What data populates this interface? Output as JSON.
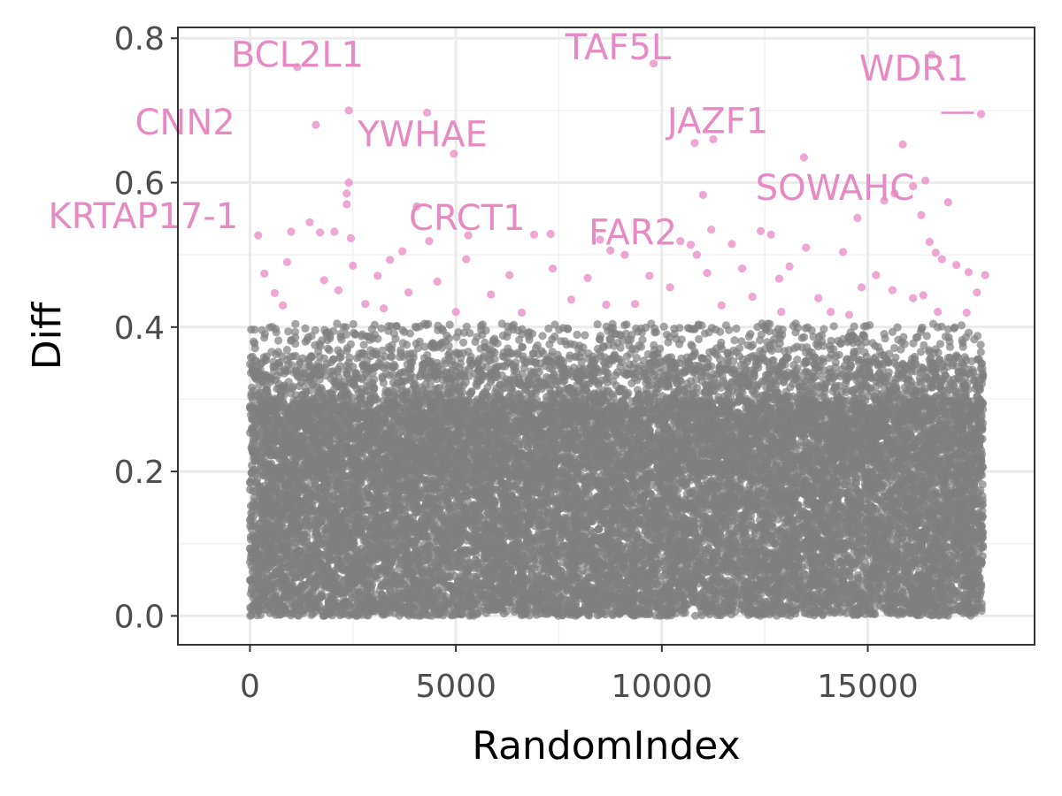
{
  "chart_data": {
    "type": "scatter",
    "title": "",
    "xlabel": "RandomIndex",
    "ylabel": "Diff",
    "xlim": [
      -1750,
      19050
    ],
    "ylim": [
      -0.04,
      0.815
    ],
    "x_ticks": [
      0,
      5000,
      10000,
      15000
    ],
    "x_tick_labels": [
      "0",
      "5000",
      "10000",
      "15000"
    ],
    "y_ticks": [
      0.0,
      0.2,
      0.4,
      0.6,
      0.8
    ],
    "y_tick_labels": [
      "0.0",
      "0.2",
      "0.4",
      "0.6",
      "0.8"
    ],
    "grid": true,
    "n_points_approx": 17800,
    "threshold": 0.41,
    "colors": {
      "background_points": "#7f7f7f",
      "highlight_points": "#e78ac3",
      "panel_border": "#333333",
      "grid_major": "#ebebeb",
      "grid_minor": "#f2f2f2"
    },
    "series": [
      {
        "color": "#7f7f7f",
        "distribution": "uniform x over [0, 17800]; y concentrated 0.0-0.4 (dense below ~0.3, sparser toward 0.4)"
      },
      {
        "color": "#e78ac3",
        "points": [
          [
            1150,
            0.76
          ],
          [
            2400,
            0.7
          ],
          [
            1600,
            0.68
          ],
          [
            4300,
            0.697
          ],
          [
            4950,
            0.64
          ],
          [
            9800,
            0.765
          ],
          [
            10800,
            0.655
          ],
          [
            11250,
            0.66
          ],
          [
            11000,
            0.583
          ],
          [
            13450,
            0.635
          ],
          [
            15850,
            0.653
          ],
          [
            16550,
            0.777
          ],
          [
            17750,
            0.695
          ],
          [
            16400,
            0.603
          ],
          [
            16100,
            0.595
          ],
          [
            15400,
            0.575
          ],
          [
            15650,
            0.585
          ],
          [
            16950,
            0.573
          ],
          [
            2400,
            0.6
          ],
          [
            2350,
            0.585
          ],
          [
            2350,
            0.57
          ],
          [
            4050,
            0.567
          ],
          [
            14750,
            0.551
          ],
          [
            16300,
            0.555
          ],
          [
            1450,
            0.545
          ],
          [
            2450,
            0.523
          ],
          [
            2050,
            0.532
          ],
          [
            1700,
            0.531
          ],
          [
            1000,
            0.532
          ],
          [
            200,
            0.527
          ],
          [
            5300,
            0.527
          ],
          [
            6900,
            0.528
          ],
          [
            7300,
            0.529
          ],
          [
            8500,
            0.521
          ],
          [
            11200,
            0.535
          ],
          [
            12400,
            0.533
          ],
          [
            4350,
            0.519
          ],
          [
            10450,
            0.519
          ],
          [
            10700,
            0.514
          ],
          [
            11700,
            0.515
          ],
          [
            12650,
            0.528
          ],
          [
            13500,
            0.51
          ],
          [
            14400,
            0.504
          ],
          [
            16500,
            0.518
          ],
          [
            16650,
            0.503
          ],
          [
            3700,
            0.505
          ],
          [
            5250,
            0.494
          ],
          [
            8750,
            0.506
          ],
          [
            9100,
            0.5
          ],
          [
            10850,
            0.5
          ],
          [
            16800,
            0.494
          ],
          [
            17150,
            0.486
          ],
          [
            900,
            0.49
          ],
          [
            2500,
            0.485
          ],
          [
            3400,
            0.493
          ],
          [
            7350,
            0.481
          ],
          [
            11950,
            0.481
          ],
          [
            13100,
            0.484
          ],
          [
            15200,
            0.472
          ],
          [
            17450,
            0.476
          ],
          [
            17850,
            0.472
          ],
          [
            350,
            0.474
          ],
          [
            1800,
            0.465
          ],
          [
            3100,
            0.471
          ],
          [
            4550,
            0.463
          ],
          [
            6300,
            0.472
          ],
          [
            8200,
            0.468
          ],
          [
            9700,
            0.471
          ],
          [
            11100,
            0.475
          ],
          [
            12850,
            0.467
          ],
          [
            14850,
            0.455
          ],
          [
            16350,
            0.444
          ],
          [
            600,
            0.447
          ],
          [
            2150,
            0.451
          ],
          [
            3850,
            0.448
          ],
          [
            5850,
            0.445
          ],
          [
            7800,
            0.438
          ],
          [
            8650,
            0.431
          ],
          [
            10200,
            0.455
          ],
          [
            12200,
            0.442
          ],
          [
            13800,
            0.44
          ],
          [
            15600,
            0.451
          ],
          [
            16100,
            0.44
          ],
          [
            17650,
            0.448
          ],
          [
            800,
            0.43
          ],
          [
            2800,
            0.432
          ],
          [
            3250,
            0.426
          ],
          [
            5000,
            0.421
          ],
          [
            6600,
            0.42
          ],
          [
            9350,
            0.432
          ],
          [
            11450,
            0.43
          ],
          [
            12900,
            0.421
          ],
          [
            14100,
            0.421
          ],
          [
            14550,
            0.417
          ],
          [
            16700,
            0.421
          ],
          [
            17400,
            0.42
          ]
        ]
      }
    ],
    "annotations": [
      {
        "label": "BCL2L1",
        "x": 1150,
        "y": 0.76
      },
      {
        "label": "CNN2",
        "x": 2400,
        "y": 0.7
      },
      {
        "label": "KRTAP17-1",
        "x": 1600,
        "y": 0.68
      },
      {
        "label": "YWHAE",
        "x": 4300,
        "y": 0.697
      },
      {
        "label": "CRCT1",
        "x": 4950,
        "y": 0.64
      },
      {
        "label": "TAF5L",
        "x": 9800,
        "y": 0.765
      },
      {
        "label": "FAR2",
        "x": 10800,
        "y": 0.655
      },
      {
        "label": "JAZF1",
        "x": 11250,
        "y": 0.66
      },
      {
        "label": "SOWAHC",
        "x": 17750,
        "y": 0.695
      },
      {
        "label": "WDR1",
        "x": 16550,
        "y": 0.777
      }
    ]
  }
}
